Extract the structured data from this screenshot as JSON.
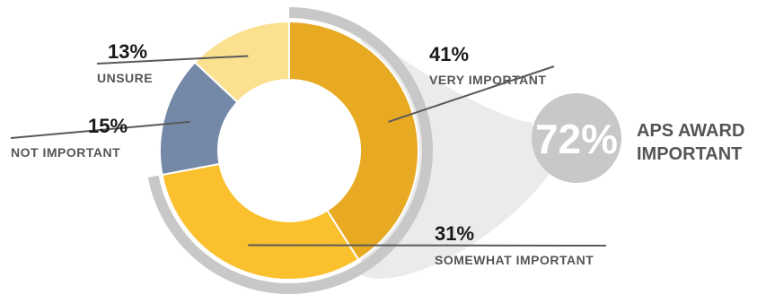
{
  "chart_data": {
    "type": "pie",
    "donut": true,
    "slices": [
      {
        "label": "VERY IMPORTANT",
        "value": 41,
        "value_label": "41%",
        "color": "#e8a923"
      },
      {
        "label": "SOMEWHAT IMPORTANT",
        "value": 31,
        "value_label": "31%",
        "color": "#fbc02d"
      },
      {
        "label": "NOT IMPORTANT",
        "value": 15,
        "value_label": "15%",
        "color": "#7489a8"
      },
      {
        "label": "UNSURE",
        "value": 13,
        "value_label": "13%",
        "color": "#fae08f"
      }
    ],
    "highlight": {
      "value": 72,
      "value_label": "72%",
      "text_lines": [
        "APS AWARD",
        "IMPORTANT"
      ]
    },
    "colors": {
      "outer_ring": "#c8c8c8",
      "callout_fill": "#ebebeb",
      "leader_line": "#5a5a5a"
    }
  }
}
